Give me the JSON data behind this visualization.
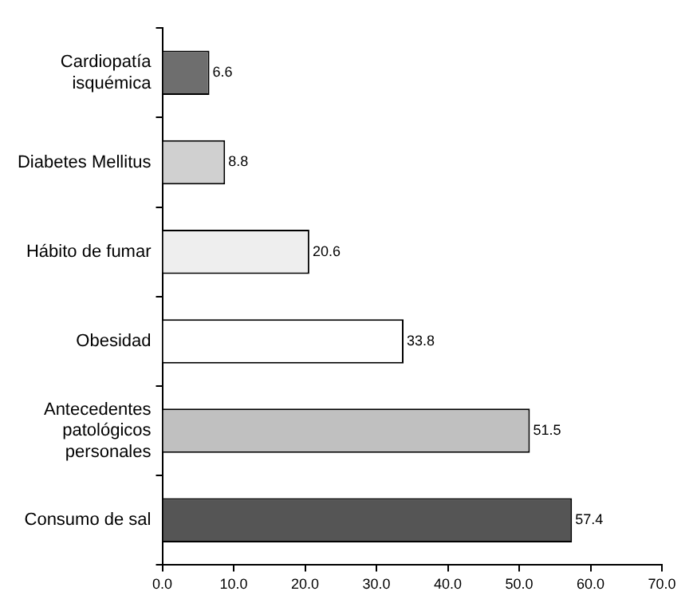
{
  "chart_data": {
    "type": "bar",
    "orientation": "horizontal",
    "categories": [
      "Cardiopatía isquémica",
      "Diabetes Mellitus",
      "Hábito de fumar",
      "Obesidad",
      "Antecedentes patológicos personales",
      "Consumo de sal"
    ],
    "values": [
      6.6,
      8.8,
      20.6,
      33.8,
      51.5,
      57.4
    ],
    "colors": [
      "#6e6e6e",
      "#d0d0d0",
      "#eeeeee",
      "#ffffff",
      "#c0c0c0",
      "#555555"
    ],
    "xlim": [
      0,
      70
    ],
    "xticks": [
      {
        "value": 0,
        "label": "0.0"
      },
      {
        "value": 10,
        "label": "10.0"
      },
      {
        "value": 20,
        "label": "20.0"
      },
      {
        "value": 30,
        "label": "30.0"
      },
      {
        "value": 40,
        "label": "40.0"
      },
      {
        "value": 50,
        "label": "50.0"
      },
      {
        "value": 60,
        "label": "60.0"
      },
      {
        "value": 70,
        "label": "70.0"
      }
    ],
    "data_labels": true,
    "grid": false,
    "legend": false
  }
}
